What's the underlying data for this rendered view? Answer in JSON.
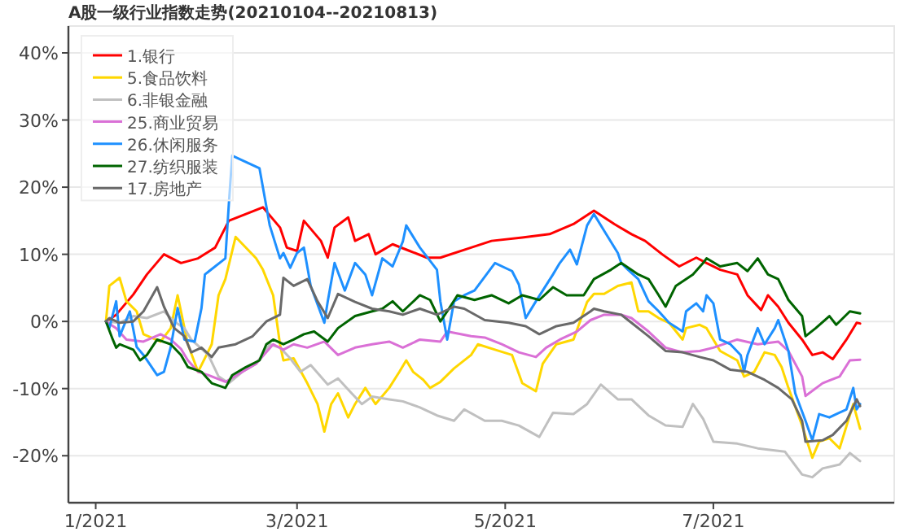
{
  "chart_data": {
    "type": "line",
    "title": "A股一级行业指数走势(20210104--20210813)",
    "xlim": [
      "2020-12-24",
      "2021-08-23"
    ],
    "xticks": [
      {
        "value": "2021-01-01",
        "label": "1/2021"
      },
      {
        "value": "2021-03-01",
        "label": "3/2021"
      },
      {
        "value": "2021-05-01",
        "label": "5/2021"
      },
      {
        "value": "2021-07-01",
        "label": "7/2021"
      }
    ],
    "ylim": [
      -27,
      44
    ],
    "yticks": [
      {
        "value": -20,
        "label": "-20%"
      },
      {
        "value": -10,
        "label": "-10%"
      },
      {
        "value": 0,
        "label": "0%"
      },
      {
        "value": 10,
        "label": "10%"
      },
      {
        "value": 20,
        "label": "20%"
      },
      {
        "value": 30,
        "label": "30%"
      },
      {
        "value": 40,
        "label": "40%"
      }
    ],
    "grid": "y",
    "legend": "top left",
    "series": [
      {
        "name": "1.银行",
        "color": "#ff0000",
        "x": [
          "2021-01-04",
          "2021-01-07",
          "2021-01-12",
          "2021-01-16",
          "2021-01-21",
          "2021-01-26",
          "2021-01-31",
          "2021-02-05",
          "2021-02-09",
          "2021-02-14",
          "2021-02-19",
          "2021-02-24",
          "2021-02-26",
          "2021-03-01",
          "2021-03-03",
          "2021-03-08",
          "2021-03-10",
          "2021-03-12",
          "2021-03-16",
          "2021-03-18",
          "2021-03-22",
          "2021-03-24",
          "2021-03-29",
          "2021-04-03",
          "2021-04-08",
          "2021-04-12",
          "2021-04-21",
          "2021-04-27",
          "2021-05-06",
          "2021-05-14",
          "2021-05-21",
          "2021-05-27",
          "2021-06-02",
          "2021-06-07",
          "2021-06-11",
          "2021-06-16",
          "2021-06-21",
          "2021-06-26",
          "2021-06-29",
          "2021-07-03",
          "2021-07-08",
          "2021-07-11",
          "2021-07-15",
          "2021-07-17",
          "2021-07-20",
          "2021-07-23",
          "2021-07-27",
          "2021-07-30",
          "2021-08-02",
          "2021-08-05",
          "2021-08-09",
          "2021-08-12",
          "2021-08-13"
        ],
        "values": [
          0,
          1,
          4,
          7,
          10,
          8.7,
          9.4,
          11,
          15,
          16,
          17,
          14,
          11,
          10.5,
          15,
          12,
          9.5,
          14,
          15.5,
          12,
          13,
          10,
          11.5,
          10.5,
          9.5,
          9.5,
          11,
          12,
          12.5,
          13,
          14.5,
          16.5,
          14.5,
          13,
          12,
          10,
          8.2,
          9.5,
          8.7,
          7.7,
          7,
          3.9,
          1.7,
          3.9,
          2.2,
          -0.2,
          -2.7,
          -5,
          -4.6,
          -5.6,
          -2.7,
          -0.2,
          -0.3
        ]
      },
      {
        "name": "5.食品饮料",
        "color": "#ffd700",
        "x": [
          "2021-01-04",
          "2021-01-05",
          "2021-01-08",
          "2021-01-10",
          "2021-01-13",
          "2021-01-15",
          "2021-01-20",
          "2021-01-23",
          "2021-01-25",
          "2021-01-28",
          "2021-01-31",
          "2021-02-04",
          "2021-02-06",
          "2021-02-08",
          "2021-02-11",
          "2021-02-17",
          "2021-02-19",
          "2021-02-22",
          "2021-02-24",
          "2021-02-25",
          "2021-02-28",
          "2021-03-04",
          "2021-03-07",
          "2021-03-09",
          "2021-03-11",
          "2021-03-13",
          "2021-03-16",
          "2021-03-18",
          "2021-03-21",
          "2021-03-24",
          "2021-03-28",
          "2021-03-31",
          "2021-04-02",
          "2021-04-04",
          "2021-04-07",
          "2021-04-09",
          "2021-04-12",
          "2021-04-16",
          "2021-04-21",
          "2021-04-23",
          "2021-04-28",
          "2021-05-03",
          "2021-05-06",
          "2021-05-10",
          "2021-05-12",
          "2021-05-16",
          "2021-05-21",
          "2021-05-25",
          "2021-05-27",
          "2021-05-30",
          "2021-06-03",
          "2021-06-07",
          "2021-06-09",
          "2021-06-12",
          "2021-06-15",
          "2021-06-18",
          "2021-06-22",
          "2021-06-23",
          "2021-06-27",
          "2021-06-29",
          "2021-07-03",
          "2021-07-08",
          "2021-07-10",
          "2021-07-13",
          "2021-07-16",
          "2021-07-19",
          "2021-07-21",
          "2021-07-23",
          "2021-07-27",
          "2021-07-30",
          "2021-08-01",
          "2021-08-04",
          "2021-08-07",
          "2021-08-11",
          "2021-08-13"
        ],
        "values": [
          0,
          5.3,
          6.5,
          3,
          1.5,
          -1.9,
          -3,
          -1,
          3.9,
          -3.4,
          -7.5,
          -3.4,
          3.9,
          6.3,
          12.6,
          9.4,
          7.7,
          3.9,
          -3.4,
          -5.8,
          -5.5,
          -9.2,
          -12.3,
          -16.4,
          -12.3,
          -10.7,
          -14.3,
          -12.3,
          -9.9,
          -12.3,
          -9.9,
          -7.5,
          -5.8,
          -7.5,
          -8.7,
          -9.9,
          -9,
          -7,
          -5,
          -3.4,
          -4.2,
          -5,
          -9.2,
          -10.4,
          -6.3,
          -3.4,
          -2.7,
          2.9,
          4.1,
          4.1,
          5.3,
          5.8,
          1.5,
          1.5,
          0.5,
          -0.2,
          -2.7,
          -1,
          -0.5,
          -1,
          -4.4,
          -5.8,
          -8.2,
          -7.5,
          -4.6,
          -5,
          -6.8,
          -9.9,
          -15.5,
          -20.3,
          -17.9,
          -17.4,
          -18.9,
          -12.3,
          -16
        ]
      },
      {
        "name": "6.非银金融",
        "color": "#c0c0c0",
        "x": [
          "2021-01-04",
          "2021-01-08",
          "2021-01-12",
          "2021-01-16",
          "2021-01-21",
          "2021-01-24",
          "2021-01-27",
          "2021-01-29",
          "2021-02-03",
          "2021-02-06",
          "2021-02-09",
          "2021-02-13",
          "2021-02-17",
          "2021-02-21",
          "2021-02-24",
          "2021-02-27",
          "2021-03-02",
          "2021-03-05",
          "2021-03-10",
          "2021-03-13",
          "2021-03-17",
          "2021-03-20",
          "2021-03-23",
          "2021-03-28",
          "2021-04-01",
          "2021-04-06",
          "2021-04-11",
          "2021-04-16",
          "2021-04-19",
          "2021-04-25",
          "2021-04-30",
          "2021-05-05",
          "2021-05-11",
          "2021-05-15",
          "2021-05-21",
          "2021-05-25",
          "2021-05-29",
          "2021-06-03",
          "2021-06-07",
          "2021-06-12",
          "2021-06-17",
          "2021-06-22",
          "2021-06-25",
          "2021-06-28",
          "2021-07-01",
          "2021-07-08",
          "2021-07-14",
          "2021-07-22",
          "2021-07-27",
          "2021-07-30",
          "2021-08-02",
          "2021-08-07",
          "2021-08-10",
          "2021-08-13"
        ],
        "values": [
          0,
          -0.2,
          0.8,
          0.5,
          1.5,
          0,
          -1,
          -2.7,
          -5,
          -8.2,
          -9.2,
          -7.5,
          -6.3,
          -3.4,
          -3.9,
          -5.5,
          -7.5,
          -6.5,
          -9.4,
          -8.5,
          -10.7,
          -12.3,
          -11.2,
          -11.6,
          -11.9,
          -12.8,
          -14,
          -14.8,
          -13.1,
          -14.8,
          -14.8,
          -15.5,
          -17.2,
          -13.6,
          -13.8,
          -12.3,
          -9.4,
          -11.6,
          -11.6,
          -14,
          -15.5,
          -15.7,
          -12.3,
          -14.5,
          -17.9,
          -18.2,
          -18.9,
          -19.4,
          -22.8,
          -23.2,
          -21.9,
          -21.3,
          -19.6,
          -20.8
        ]
      },
      {
        "name": "25.商业贸易",
        "color": "#da70d6",
        "x": [
          "2021-01-04",
          "2021-01-07",
          "2021-01-10",
          "2021-01-15",
          "2021-01-20",
          "2021-01-23",
          "2021-01-26",
          "2021-01-28",
          "2021-01-31",
          "2021-02-03",
          "2021-02-08",
          "2021-02-13",
          "2021-02-17",
          "2021-02-22",
          "2021-02-25",
          "2021-02-28",
          "2021-03-04",
          "2021-03-09",
          "2021-03-13",
          "2021-03-18",
          "2021-03-23",
          "2021-03-28",
          "2021-04-01",
          "2021-04-06",
          "2021-04-12",
          "2021-04-14",
          "2021-04-21",
          "2021-04-25",
          "2021-04-30",
          "2021-05-05",
          "2021-05-10",
          "2021-05-13",
          "2021-05-17",
          "2021-05-22",
          "2021-05-26",
          "2021-05-30",
          "2021-06-04",
          "2021-06-07",
          "2021-06-12",
          "2021-06-17",
          "2021-06-22",
          "2021-06-27",
          "2021-07-01",
          "2021-07-08",
          "2021-07-14",
          "2021-07-20",
          "2021-07-23",
          "2021-07-27",
          "2021-07-28",
          "2021-08-02",
          "2021-08-07",
          "2021-08-10",
          "2021-08-13"
        ],
        "values": [
          0,
          -1,
          -2.7,
          -3,
          -1.9,
          -2.7,
          -4.1,
          -5.8,
          -7.5,
          -8,
          -9,
          -7.5,
          -6.3,
          -3.4,
          -4.2,
          -3.4,
          -3.9,
          -3,
          -5,
          -3.9,
          -3.4,
          -3,
          -3.9,
          -2.7,
          -3,
          -1.5,
          -2.2,
          -2.4,
          -3.4,
          -4.6,
          -5.3,
          -3.9,
          -2.7,
          -1.5,
          0.2,
          1,
          1,
          0.5,
          -1.5,
          -3.9,
          -4.6,
          -4.4,
          -3.9,
          -2.7,
          -3.4,
          -3,
          -4.4,
          -8.2,
          -11.1,
          -9.2,
          -8.2,
          -5.8,
          -5.7
        ]
      },
      {
        "name": "26.休闲服务",
        "color": "#1e90ff",
        "x": [
          "2021-01-04",
          "2021-01-05",
          "2021-01-07",
          "2021-01-08",
          "2021-01-11",
          "2021-01-13",
          "2021-01-15",
          "2021-01-19",
          "2021-01-21",
          "2021-01-23",
          "2021-01-25",
          "2021-01-27",
          "2021-01-30",
          "2021-02-01",
          "2021-02-02",
          "2021-02-08",
          "2021-02-09",
          "2021-02-10",
          "2021-02-18",
          "2021-02-21",
          "2021-02-24",
          "2021-02-25",
          "2021-02-27",
          "2021-03-01",
          "2021-03-03",
          "2021-03-05",
          "2021-03-09",
          "2021-03-10",
          "2021-03-12",
          "2021-03-15",
          "2021-03-18",
          "2021-03-21",
          "2021-03-23",
          "2021-03-26",
          "2021-03-29",
          "2021-04-01",
          "2021-04-02",
          "2021-04-06",
          "2021-04-11",
          "2021-04-12",
          "2021-04-14",
          "2021-04-16",
          "2021-04-19",
          "2021-04-22",
          "2021-04-28",
          "2021-05-03",
          "2021-05-05",
          "2021-05-07",
          "2021-05-10",
          "2021-05-15",
          "2021-05-17",
          "2021-05-20",
          "2021-05-22",
          "2021-05-25",
          "2021-05-27",
          "2021-05-30",
          "2021-06-03",
          "2021-06-04",
          "2021-06-06",
          "2021-06-09",
          "2021-06-12",
          "2021-06-15",
          "2021-06-18",
          "2021-06-22",
          "2021-06-23",
          "2021-06-26",
          "2021-06-28",
          "2021-06-29",
          "2021-07-01",
          "2021-07-03",
          "2021-07-06",
          "2021-07-09",
          "2021-07-10",
          "2021-07-11",
          "2021-07-14",
          "2021-07-16",
          "2021-07-19",
          "2021-07-20",
          "2021-07-23",
          "2021-07-25",
          "2021-07-28",
          "2021-07-30",
          "2021-08-01",
          "2021-08-04",
          "2021-08-06",
          "2021-08-09",
          "2021-08-11",
          "2021-08-12",
          "2021-08-13"
        ],
        "values": [
          0,
          -1,
          3,
          -2.2,
          1.5,
          -3.8,
          -5,
          -8,
          -7.5,
          -3.8,
          2,
          -2.7,
          -3,
          2,
          7,
          9.4,
          17.4,
          24.7,
          22.8,
          14.3,
          9.4,
          10.2,
          8,
          10.2,
          11,
          5.3,
          -0.2,
          3,
          8.7,
          4.6,
          8.7,
          7,
          3.9,
          9.4,
          8.2,
          11.9,
          14.3,
          11,
          7.7,
          3,
          -2.7,
          3,
          3.9,
          4.6,
          8.7,
          7.5,
          5.5,
          0.5,
          3,
          7,
          8.7,
          10.7,
          8.5,
          14.3,
          16,
          13.5,
          10.2,
          8.7,
          7.7,
          6.3,
          3,
          1.5,
          -0.2,
          -1.5,
          1.5,
          2.7,
          1.5,
          3.9,
          2.7,
          -2.7,
          -3.4,
          -5,
          -7.5,
          -5,
          -1,
          -3.4,
          -1,
          0.2,
          -4.4,
          -10.7,
          -14.8,
          -17.7,
          -13.8,
          -14.3,
          -13.8,
          -13.1,
          -9.9,
          -13.1,
          -12.3
        ]
      },
      {
        "name": "27.纺织服装",
        "color": "#006400",
        "x": [
          "2021-01-04",
          "2021-01-06",
          "2021-01-07",
          "2021-01-08",
          "2021-01-12",
          "2021-01-14",
          "2021-01-16",
          "2021-01-19",
          "2021-01-23",
          "2021-01-26",
          "2021-01-28",
          "2021-02-01",
          "2021-02-04",
          "2021-02-08",
          "2021-02-10",
          "2021-02-14",
          "2021-02-18",
          "2021-02-20",
          "2021-02-22",
          "2021-02-25",
          "2021-02-28",
          "2021-03-03",
          "2021-03-06",
          "2021-03-10",
          "2021-03-13",
          "2021-03-18",
          "2021-03-23",
          "2021-03-26",
          "2021-03-29",
          "2021-04-01",
          "2021-04-06",
          "2021-04-09",
          "2021-04-12",
          "2021-04-14",
          "2021-04-17",
          "2021-04-22",
          "2021-04-27",
          "2021-05-02",
          "2021-05-06",
          "2021-05-11",
          "2021-05-15",
          "2021-05-19",
          "2021-05-24",
          "2021-05-27",
          "2021-06-01",
          "2021-06-04",
          "2021-06-09",
          "2021-06-12",
          "2021-06-15",
          "2021-06-17",
          "2021-06-20",
          "2021-06-25",
          "2021-06-28",
          "2021-06-29",
          "2021-07-03",
          "2021-07-08",
          "2021-07-11",
          "2021-07-14",
          "2021-07-17",
          "2021-07-20",
          "2021-07-23",
          "2021-07-27",
          "2021-07-28",
          "2021-07-31",
          "2021-08-04",
          "2021-08-06",
          "2021-08-10",
          "2021-08-13"
        ],
        "values": [
          0,
          -2.7,
          -3.9,
          -3.4,
          -4.2,
          -5.8,
          -5,
          -2.7,
          -3.4,
          -5,
          -6.8,
          -7.5,
          -9.2,
          -9.9,
          -8,
          -6.8,
          -5.8,
          -3.4,
          -2.7,
          -3.4,
          -2.7,
          -1.9,
          -1.5,
          -3,
          -1,
          0.8,
          1.5,
          1.9,
          3,
          1.5,
          3.9,
          3.2,
          0,
          1.5,
          3.9,
          3.2,
          3.9,
          2.7,
          3.9,
          3.2,
          5.1,
          3.9,
          3.9,
          6.3,
          7.7,
          8.7,
          7,
          6.3,
          3.9,
          2.2,
          5.3,
          7,
          8.7,
          9.4,
          8.2,
          8.7,
          7.5,
          9.4,
          7,
          6.3,
          3.2,
          0.8,
          -2.2,
          -1,
          0.8,
          -0.5,
          1.5,
          1.2
        ]
      },
      {
        "name": "17.房地产",
        "color": "#696969",
        "x": [
          "2021-01-04",
          "2021-01-05",
          "2021-01-08",
          "2021-01-12",
          "2021-01-15",
          "2021-01-19",
          "2021-01-21",
          "2021-01-24",
          "2021-01-27",
          "2021-01-29",
          "2021-02-01",
          "2021-02-04",
          "2021-02-06",
          "2021-02-11",
          "2021-02-16",
          "2021-02-20",
          "2021-02-24",
          "2021-02-25",
          "2021-02-28",
          "2021-03-04",
          "2021-03-07",
          "2021-03-10",
          "2021-03-13",
          "2021-03-18",
          "2021-03-23",
          "2021-03-28",
          "2021-04-01",
          "2021-04-06",
          "2021-04-11",
          "2021-04-16",
          "2021-04-19",
          "2021-04-25",
          "2021-05-02",
          "2021-05-07",
          "2021-05-11",
          "2021-05-16",
          "2021-05-21",
          "2021-05-26",
          "2021-05-27",
          "2021-05-30",
          "2021-06-04",
          "2021-06-07",
          "2021-06-12",
          "2021-06-17",
          "2021-06-22",
          "2021-06-27",
          "2021-07-01",
          "2021-07-06",
          "2021-07-11",
          "2021-07-16",
          "2021-07-20",
          "2021-07-24",
          "2021-07-27",
          "2021-07-28",
          "2021-08-02",
          "2021-08-05",
          "2021-08-09",
          "2021-08-12",
          "2021-08-13"
        ],
        "values": [
          0,
          0.5,
          -0.2,
          0,
          1.5,
          5.1,
          2.2,
          -1,
          -2.2,
          -4.6,
          -3.9,
          -5.3,
          -3.9,
          -3.4,
          -2.2,
          0,
          1,
          6.5,
          5.3,
          6.3,
          3,
          0.5,
          4.1,
          2.9,
          1.9,
          1.5,
          1,
          1.9,
          1,
          2.2,
          1.9,
          0.2,
          -0.2,
          -0.7,
          -1.9,
          -0.7,
          -0.2,
          1.5,
          1.9,
          1.5,
          1,
          -0.2,
          -2.2,
          -4.4,
          -4.6,
          -5.3,
          -5.8,
          -7.2,
          -7.5,
          -8.7,
          -9.9,
          -11.6,
          -14.8,
          -17.9,
          -17.7,
          -16.9,
          -14.8,
          -11.6,
          -12.6
        ]
      }
    ]
  }
}
